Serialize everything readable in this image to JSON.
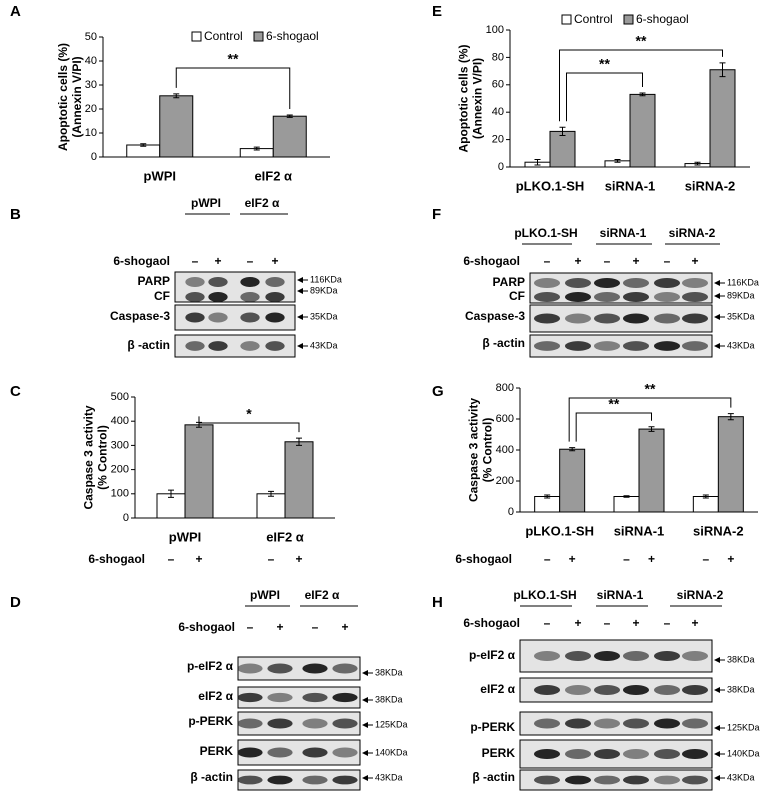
{
  "chart_data": [
    {
      "panel": "A",
      "type": "bar",
      "ylabel": [
        "Apoptotic cells (%)",
        "(Annexin V/PI)"
      ],
      "categories": [
        "pWPI",
        "eIF2 α"
      ],
      "series": [
        {
          "name": "Control",
          "color": "#ffffff",
          "values": [
            5,
            3.5
          ],
          "errors": [
            0.5,
            0.6
          ]
        },
        {
          "name": "6-shogaol",
          "color": "#9a9a9a",
          "values": [
            25.5,
            17
          ],
          "errors": [
            0.8,
            0.5
          ]
        }
      ],
      "ylim": [
        0,
        50
      ],
      "yticks": [
        0,
        10,
        20,
        30,
        40,
        50
      ],
      "annotations": [
        "**"
      ],
      "legend": "top"
    },
    {
      "panel": "C",
      "type": "bar",
      "ylabel": [
        "Caspase 3 activity",
        "(% Control)"
      ],
      "categories": [
        "pWPI",
        "eIF2 α"
      ],
      "series": [
        {
          "color": "#ffffff",
          "values": [
            100,
            100
          ],
          "errors": [
            15,
            10
          ]
        },
        {
          "color": "#9a9a9a",
          "values": [
            385,
            315
          ],
          "errors": [
            10,
            15
          ]
        }
      ],
      "ylim": [
        0,
        500
      ],
      "yticks": [
        0,
        100,
        200,
        300,
        400,
        500
      ],
      "annotations": [
        "*"
      ],
      "treatment": {
        "label": "6-shogaol",
        "signs": [
          "–",
          "+",
          "–",
          "+"
        ]
      }
    },
    {
      "panel": "E",
      "type": "bar",
      "ylabel": [
        "Apoptotic cells (%)",
        "(Annexin V/PI)"
      ],
      "categories": [
        "pLKO.1-SH",
        "siRNA-1",
        "siRNA-2"
      ],
      "series": [
        {
          "name": "Control",
          "color": "#ffffff",
          "values": [
            3.5,
            4.5,
            2.5
          ],
          "errors": [
            2,
            1,
            1
          ]
        },
        {
          "name": "6-shogaol",
          "color": "#9a9a9a",
          "values": [
            26,
            53,
            71
          ],
          "errors": [
            3,
            1,
            5
          ]
        }
      ],
      "ylim": [
        0,
        100
      ],
      "yticks": [
        0,
        20,
        40,
        60,
        80,
        100
      ],
      "annotations": [
        "**",
        "**"
      ],
      "legend": "top"
    },
    {
      "panel": "G",
      "type": "bar",
      "ylabel": [
        "Caspase 3 activity",
        "(% Control)"
      ],
      "categories": [
        "pLKO.1-SH",
        "siRNA-1",
        "siRNA-2"
      ],
      "series": [
        {
          "color": "#ffffff",
          "values": [
            100,
            100,
            100
          ],
          "errors": [
            10,
            5,
            10
          ]
        },
        {
          "color": "#9a9a9a",
          "values": [
            405,
            535,
            615
          ],
          "errors": [
            10,
            15,
            20
          ]
        }
      ],
      "ylim": [
        0,
        800
      ],
      "yticks": [
        0,
        200,
        400,
        600,
        800
      ],
      "annotations": [
        "**",
        "**"
      ],
      "treatment": {
        "label": "6-shogaol",
        "signs": [
          "–",
          "+",
          "–",
          "+",
          "–",
          "+"
        ]
      }
    }
  ],
  "blots": [
    {
      "panel": "B",
      "groups": [
        "pWPI",
        "eIF2 α"
      ],
      "treatment": {
        "label": "6-shogaol",
        "signs": [
          "–",
          "+",
          "–",
          "+"
        ]
      },
      "rows": [
        {
          "labels": [
            "PARP",
            "CF"
          ],
          "sizes": [
            "116KDa",
            "89KDa"
          ]
        },
        {
          "labels": [
            "Caspase-3"
          ],
          "sizes": [
            "35KDa"
          ]
        },
        {
          "labels": [
            "β -actin"
          ],
          "sizes": [
            "43KDa"
          ]
        }
      ]
    },
    {
      "panel": "D",
      "groups": [
        "pWPI",
        "eIF2 α"
      ],
      "treatment": {
        "label": "6-shogaol",
        "signs": [
          "–",
          "+",
          "–",
          "+"
        ]
      },
      "rows": [
        {
          "labels": [
            "p-eIF2 α"
          ],
          "sizes": [
            "38KDa"
          ]
        },
        {
          "labels": [
            "eIF2 α"
          ],
          "sizes": [
            "38KDa"
          ]
        },
        {
          "labels": [
            "p-PERK"
          ],
          "sizes": [
            "125KDa"
          ]
        },
        {
          "labels": [
            "PERK"
          ],
          "sizes": [
            "140KDa"
          ]
        },
        {
          "labels": [
            "β -actin"
          ],
          "sizes": [
            "43KDa"
          ]
        }
      ]
    },
    {
      "panel": "F",
      "groups": [
        "pLKO.1-SH",
        "siRNA-1",
        "siRNA-2"
      ],
      "treatment": {
        "label": "6-shogaol",
        "signs": [
          "–",
          "+",
          "–",
          "+",
          "–",
          "+"
        ]
      },
      "rows": [
        {
          "labels": [
            "PARP",
            "CF"
          ],
          "sizes": [
            "116KDa",
            "89KDa"
          ]
        },
        {
          "labels": [
            "Caspase-3"
          ],
          "sizes": [
            "35KDa"
          ]
        },
        {
          "labels": [
            "β -actin"
          ],
          "sizes": [
            "43KDa"
          ]
        }
      ]
    },
    {
      "panel": "H",
      "groups": [
        "pLKO.1-SH",
        "siRNA-1",
        "siRNA-2"
      ],
      "treatment": {
        "label": "6-shogaol",
        "signs": [
          "–",
          "+",
          "–",
          "+",
          "–",
          "+"
        ]
      },
      "rows": [
        {
          "labels": [
            "p-eIF2 α"
          ],
          "sizes": [
            "38KDa"
          ]
        },
        {
          "labels": [
            "eIF2 α"
          ],
          "sizes": [
            "38KDa"
          ]
        },
        {
          "labels": [
            "p-PERK"
          ],
          "sizes": [
            "125KDa"
          ]
        },
        {
          "labels": [
            "PERK"
          ],
          "sizes": [
            "140KDa"
          ]
        },
        {
          "labels": [
            "β -actin"
          ],
          "sizes": [
            "43KDa"
          ]
        }
      ]
    }
  ]
}
